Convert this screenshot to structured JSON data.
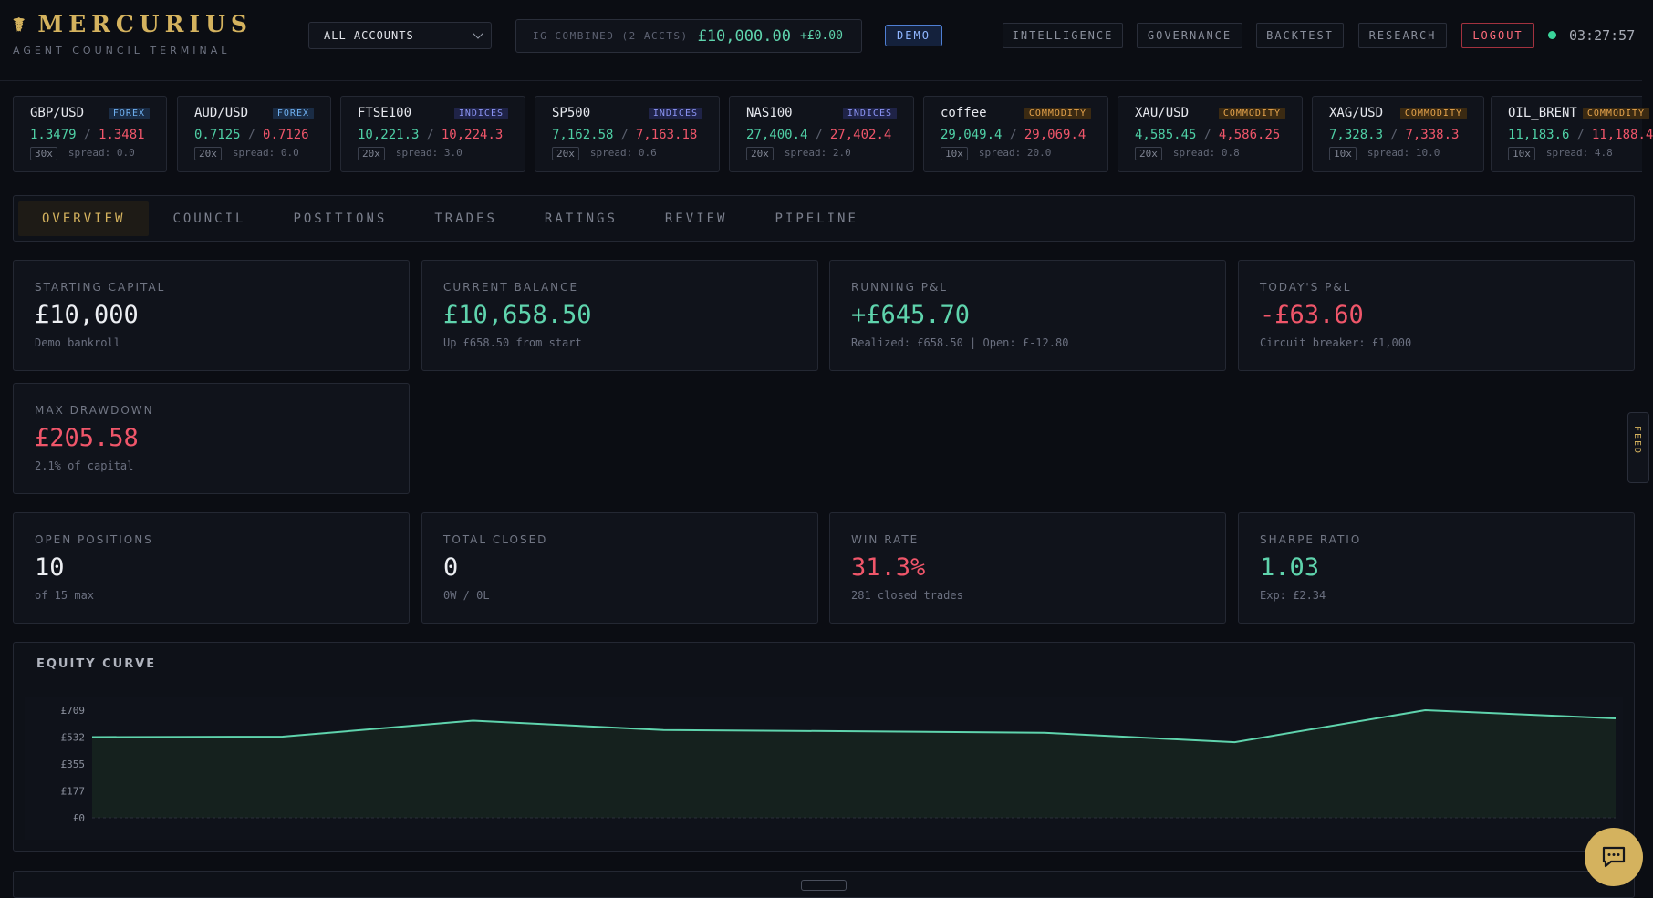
{
  "brand": {
    "title": "MERCURIUS",
    "subtitle": "AGENT COUNCIL TERMINAL",
    "icon": "caduceus-icon"
  },
  "account_select": {
    "value": "ALL ACCOUNTS"
  },
  "combined": {
    "label": "IG COMBINED (2 ACCTS)",
    "value": "£10,000.00",
    "delta": "+£0.00"
  },
  "mode_badge": "DEMO",
  "nav": {
    "intelligence": "INTELLIGENCE",
    "governance": "GOVERNANCE",
    "backtest": "BACKTEST",
    "research": "RESEARCH",
    "logout": "LOGOUT"
  },
  "clock": "03:27:57",
  "tickers": [
    {
      "symbol": "GBP/USD",
      "category": "FOREX",
      "bid": "1.3479",
      "ask": "1.3481",
      "leverage": "30x",
      "spread": "spread: 0.0"
    },
    {
      "symbol": "AUD/USD",
      "category": "FOREX",
      "bid": "0.7125",
      "ask": "0.7126",
      "leverage": "20x",
      "spread": "spread: 0.0"
    },
    {
      "symbol": "FTSE100",
      "category": "INDICES",
      "bid": "10,221.3",
      "ask": "10,224.3",
      "leverage": "20x",
      "spread": "spread: 3.0"
    },
    {
      "symbol": "SP500",
      "category": "INDICES",
      "bid": "7,162.58",
      "ask": "7,163.18",
      "leverage": "20x",
      "spread": "spread: 0.6"
    },
    {
      "symbol": "NAS100",
      "category": "INDICES",
      "bid": "27,400.4",
      "ask": "27,402.4",
      "leverage": "20x",
      "spread": "spread: 2.0"
    },
    {
      "symbol": "coffee",
      "category": "COMMODITY",
      "bid": "29,049.4",
      "ask": "29,069.4",
      "leverage": "10x",
      "spread": "spread: 20.0"
    },
    {
      "symbol": "XAU/USD",
      "category": "COMMODITY",
      "bid": "4,585.45",
      "ask": "4,586.25",
      "leverage": "20x",
      "spread": "spread: 0.8"
    },
    {
      "symbol": "XAG/USD",
      "category": "COMMODITY",
      "bid": "7,328.3",
      "ask": "7,338.3",
      "leverage": "10x",
      "spread": "spread: 10.0"
    },
    {
      "symbol": "OIL_BRENT",
      "category": "COMMODITY",
      "bid": "11,183.6",
      "ask": "11,188.4",
      "leverage": "10x",
      "spread": "spread: 4.8"
    }
  ],
  "tabs": [
    "OVERVIEW",
    "COUNCIL",
    "POSITIONS",
    "TRADES",
    "RATINGS",
    "REVIEW",
    "PIPELINE"
  ],
  "stats": {
    "starting_capital": {
      "label": "STARTING CAPITAL",
      "value": "£10,000",
      "sub": "Demo bankroll"
    },
    "current_balance": {
      "label": "CURRENT BALANCE",
      "value": "£10,658.50",
      "sub": "Up £658.50 from start"
    },
    "running_pnl": {
      "label": "RUNNING P&L",
      "value": "+£645.70",
      "sub": "Realized: £658.50 | Open: £-12.80"
    },
    "todays_pnl": {
      "label": "TODAY'S P&L",
      "value": "-£63.60",
      "sub": "Circuit breaker: £1,000"
    },
    "max_drawdown": {
      "label": "MAX DRAWDOWN",
      "value": "£205.58",
      "sub": "2.1% of capital"
    },
    "open_positions": {
      "label": "OPEN POSITIONS",
      "value": "10",
      "sub": "of 15 max"
    },
    "total_closed": {
      "label": "TOTAL CLOSED",
      "value": "0",
      "sub": "0W / 0L"
    },
    "win_rate": {
      "label": "WIN RATE",
      "value": "31.3%",
      "sub": "281 closed trades"
    },
    "sharpe_ratio": {
      "label": "SHARPE RATIO",
      "value": "1.03",
      "sub": "Exp: £2.34"
    }
  },
  "side_tab_label": "FEED",
  "chat_icon": "chat-icon",
  "colors": {
    "accent": "#d4b25e",
    "positive": "#5fd4ad",
    "negative": "#f0566a",
    "demo": "#8fb6ff"
  },
  "chart_data": {
    "type": "area",
    "title": "EQUITY CURVE",
    "x": [
      0,
      1,
      2,
      3,
      4,
      5,
      6,
      7,
      8
    ],
    "values": [
      532,
      535,
      640,
      578,
      570,
      560,
      498,
      709,
      655
    ],
    "ylim": [
      0,
      709
    ],
    "yticks": [
      "£709",
      "£532",
      "£355",
      "£177",
      "£0"
    ],
    "line_color": "#5fd4ad",
    "grid": false
  }
}
